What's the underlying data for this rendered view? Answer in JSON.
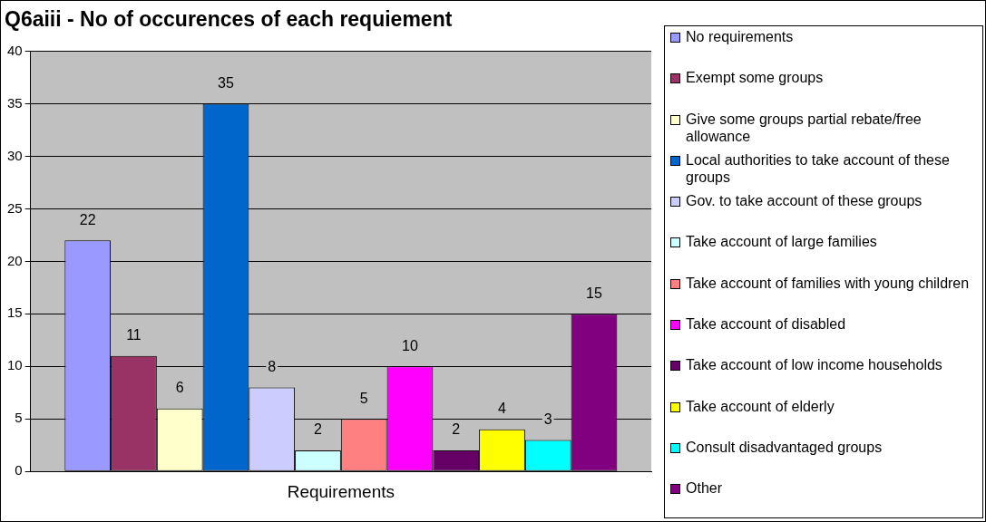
{
  "chart_data": {
    "type": "bar",
    "title": "Q6aiii - No of occurences of each requiement",
    "categories": [
      "Requirements"
    ],
    "series": [
      {
        "name": "No requirements",
        "color": "#9999ff",
        "values": [
          22
        ]
      },
      {
        "name": "Exempt some groups",
        "color": "#993366",
        "values": [
          11
        ]
      },
      {
        "name": "Give some groups partial rebate/free allowance",
        "color": "#ffffcc",
        "values": [
          6
        ]
      },
      {
        "name": "Local authorities to take account of these groups",
        "color": "#0066cc",
        "values": [
          35
        ]
      },
      {
        "name": "Gov. to take account of these groups",
        "color": "#ccccff",
        "values": [
          8
        ]
      },
      {
        "name": "Take account of large families",
        "color": "#ccffff",
        "values": [
          2
        ]
      },
      {
        "name": "Take account of families with young children",
        "color": "#ff8080",
        "values": [
          5
        ]
      },
      {
        "name": "Take account of disabled",
        "color": "#ff00ff",
        "values": [
          10
        ]
      },
      {
        "name": "Take account of low income households",
        "color": "#660066",
        "values": [
          2
        ]
      },
      {
        "name": "Take account of elderly",
        "color": "#ffff00",
        "values": [
          4
        ]
      },
      {
        "name": "Consult disadvantaged groups",
        "color": "#00ffff",
        "values": [
          3
        ]
      },
      {
        "name": "Other",
        "color": "#800080",
        "values": [
          15
        ]
      }
    ],
    "ylim": [
      0,
      40
    ],
    "yticks": [
      0,
      5,
      10,
      15,
      20,
      25,
      30,
      35,
      40
    ],
    "grid": "y",
    "legend": "right",
    "data_labels": true
  }
}
